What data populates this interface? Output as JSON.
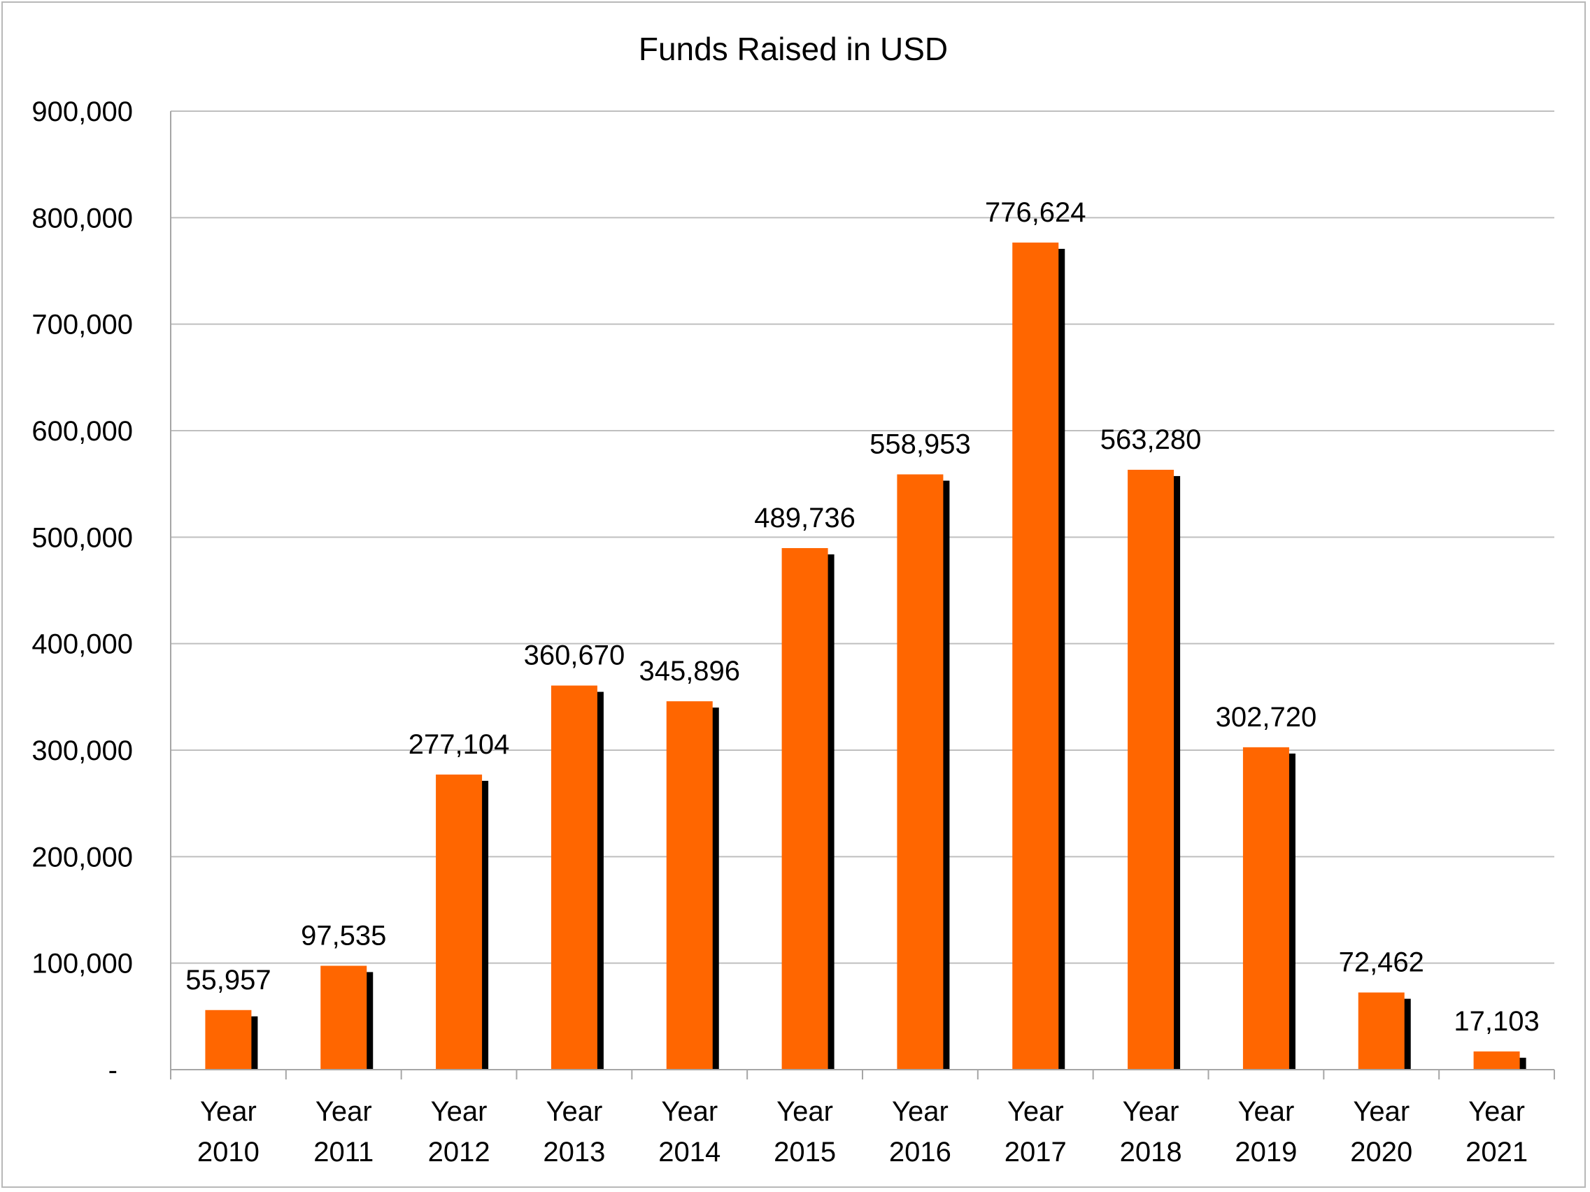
{
  "chart_data": {
    "type": "bar",
    "title": "Funds Raised in USD",
    "xlabel": "",
    "ylabel": "",
    "categories": [
      [
        "Year",
        "2010"
      ],
      [
        "Year",
        "2011"
      ],
      [
        "Year",
        "2012"
      ],
      [
        "Year",
        "2013"
      ],
      [
        "Year",
        "2014"
      ],
      [
        "Year",
        "2015"
      ],
      [
        "Year",
        "2016"
      ],
      [
        "Year",
        "2017"
      ],
      [
        "Year",
        "2018"
      ],
      [
        "Year",
        "2019"
      ],
      [
        "Year",
        "2020"
      ],
      [
        "Year",
        "2021"
      ]
    ],
    "values": [
      55957,
      97535,
      277104,
      360670,
      345896,
      489736,
      558953,
      776624,
      563280,
      302720,
      72462,
      17103
    ],
    "data_labels": [
      "55,957",
      "97,535",
      "277,104",
      "360,670",
      "345,896",
      "489,736",
      "558,953",
      "776,624",
      "563,280",
      "302,720",
      "72,462",
      "17,103"
    ],
    "ylim": [
      0,
      900000
    ],
    "yticks": [
      0,
      100000,
      200000,
      300000,
      400000,
      500000,
      600000,
      700000,
      800000,
      900000
    ],
    "ytick_labels": [
      "-",
      "100,000",
      "200,000",
      "300,000",
      "400,000",
      "500,000",
      "600,000",
      "700,000",
      "800,000",
      "900,000"
    ],
    "grid": true,
    "legend": "none",
    "colors": {
      "bar": "#ff6600",
      "shadow": "#000000",
      "grid": "#bfbfbf",
      "axis": "#a6a6a6"
    }
  }
}
